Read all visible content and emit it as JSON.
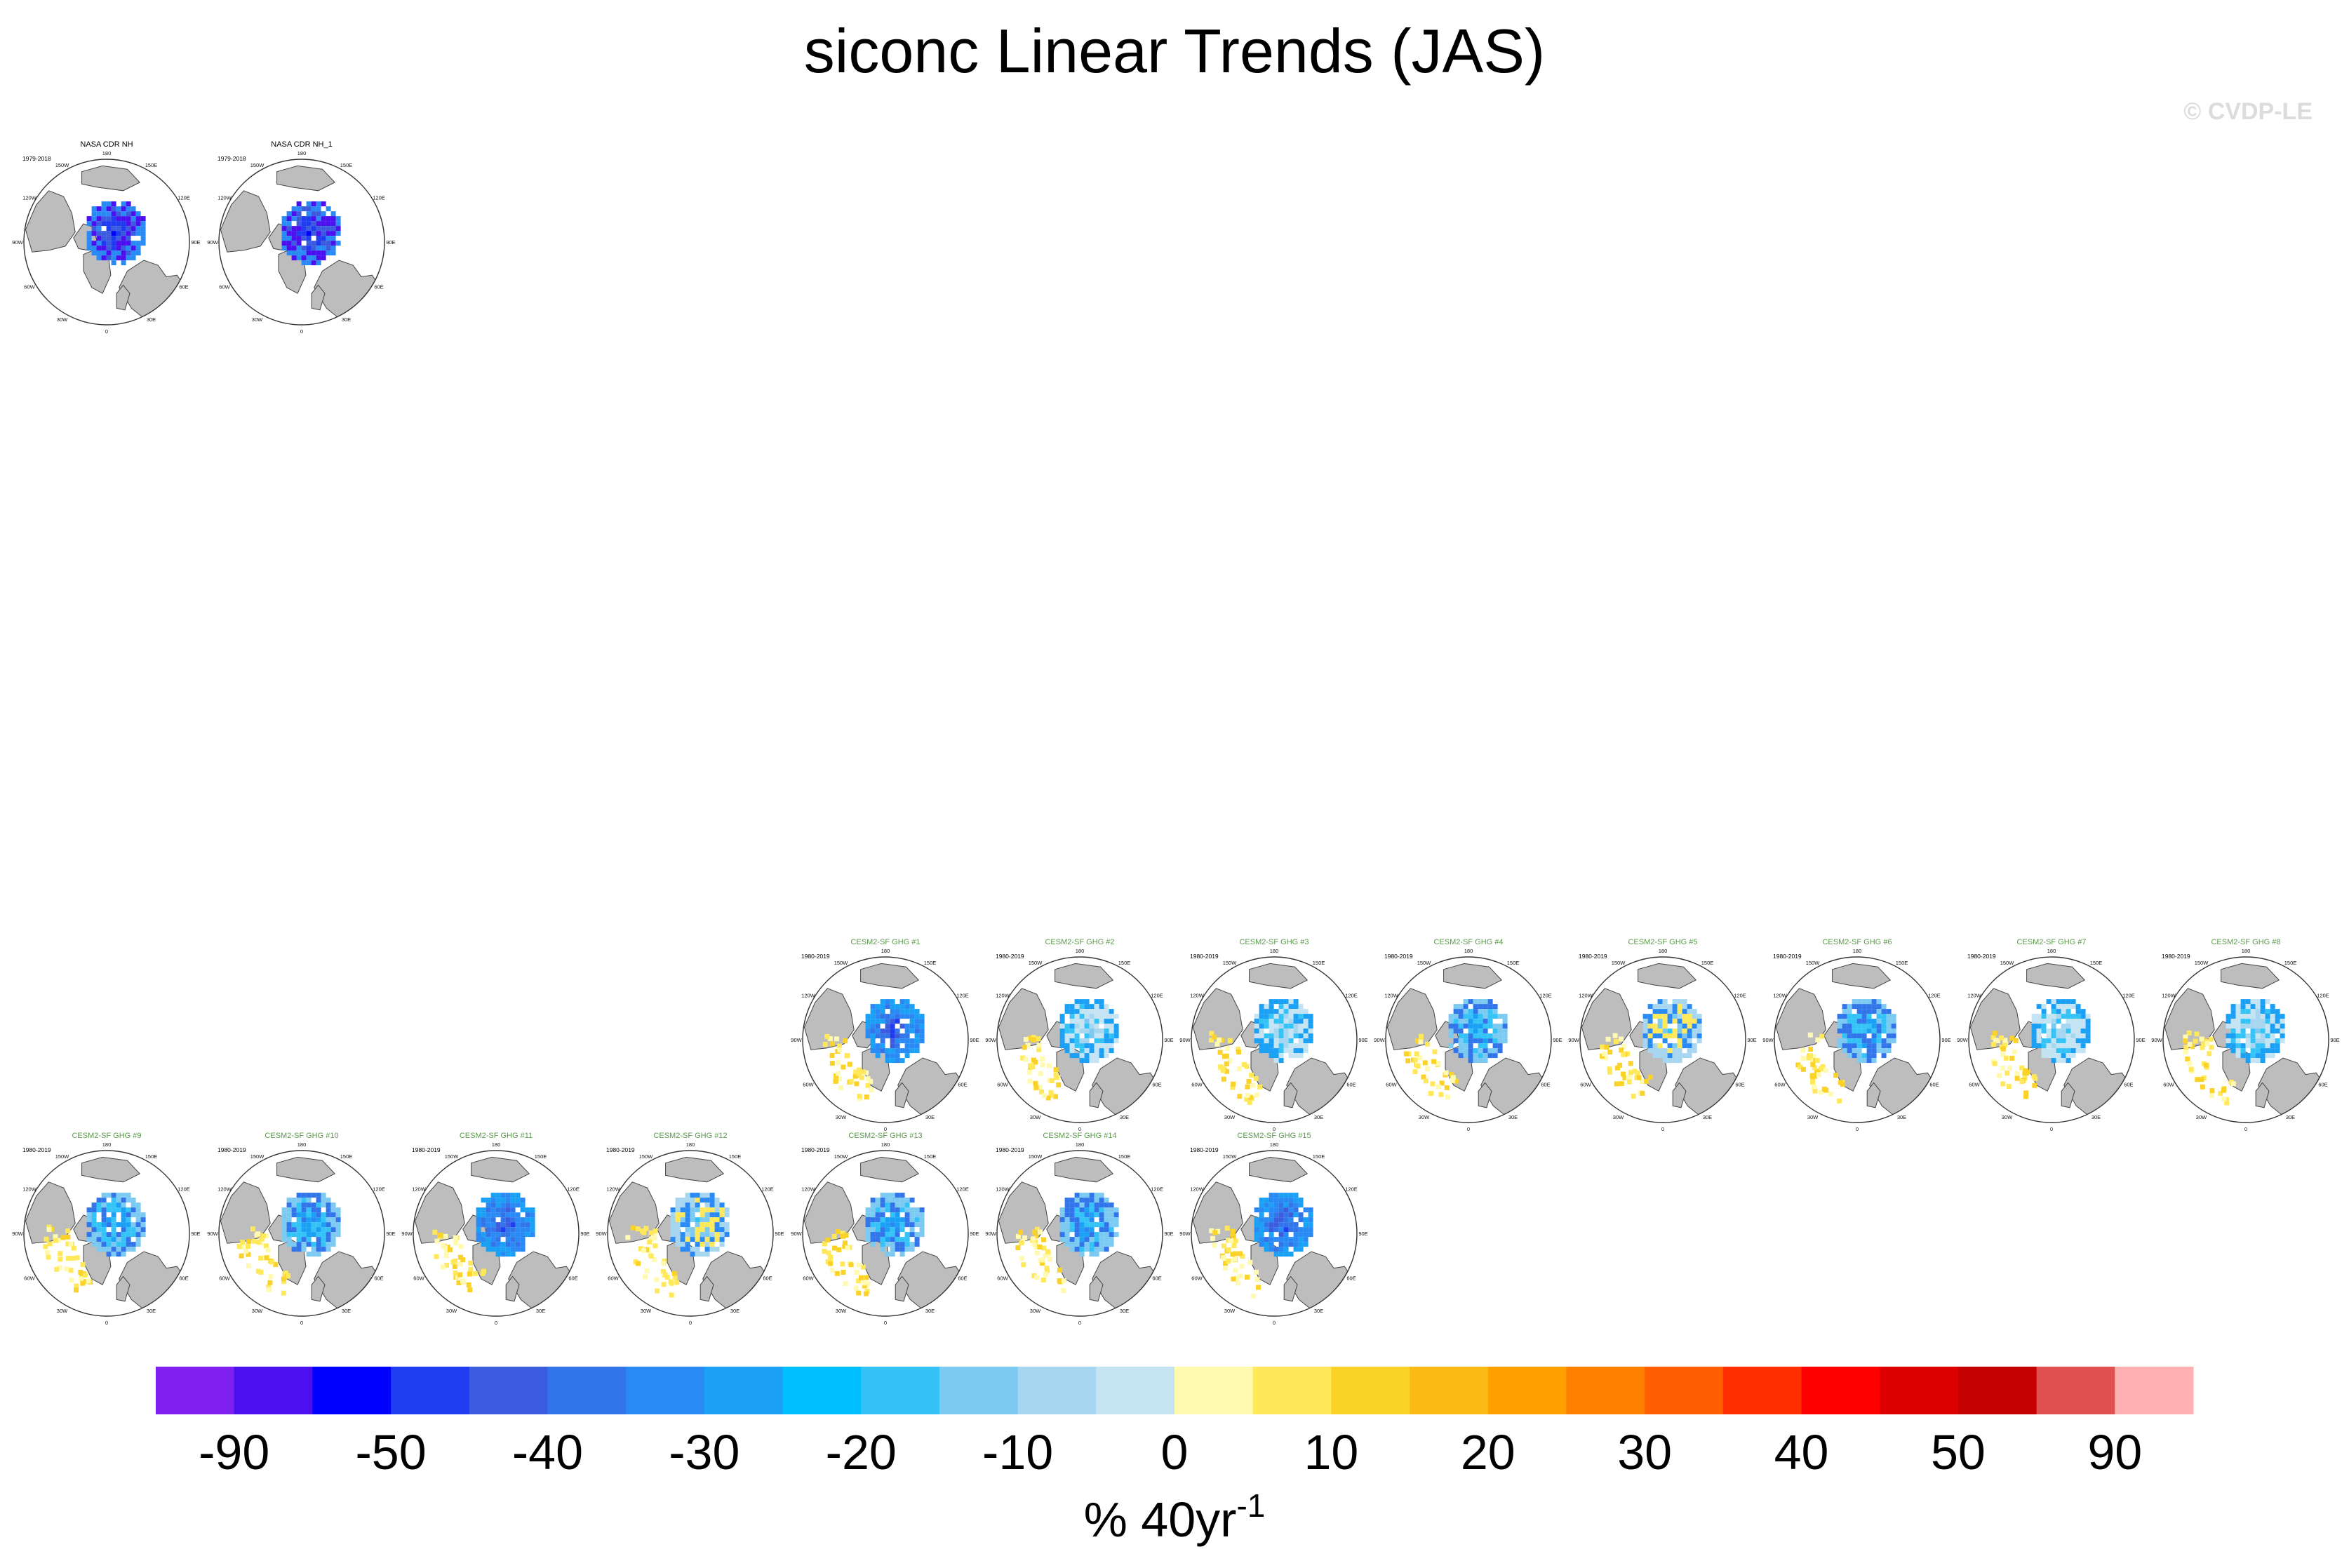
{
  "title": "siconc Linear Trends (JAS)",
  "watermark": "© CVDP-LE",
  "chart_data": {
    "type": "heatmap",
    "projection": "north polar stereographic",
    "panels": [
      {
        "title": "NASA CDR NH",
        "period": "1979-2018",
        "title_color": "#000000",
        "pattern": "obs"
      },
      {
        "title": "NASA CDR NH_1",
        "period": "1979-2018",
        "title_color": "#000000",
        "pattern": "obs"
      },
      {
        "title": "CESM2-SF GHG #1",
        "period": "1980-2019",
        "title_color": "#5a9a4a",
        "pattern": "strong"
      },
      {
        "title": "CESM2-SF GHG #2",
        "period": "1980-2019",
        "title_color": "#5a9a4a",
        "pattern": "weak"
      },
      {
        "title": "CESM2-SF GHG #3",
        "period": "1980-2019",
        "title_color": "#5a9a4a",
        "pattern": "weak"
      },
      {
        "title": "CESM2-SF GHG #4",
        "period": "1980-2019",
        "title_color": "#5a9a4a",
        "pattern": "medium"
      },
      {
        "title": "CESM2-SF GHG #5",
        "period": "1980-2019",
        "title_color": "#5a9a4a",
        "pattern": "mixed"
      },
      {
        "title": "CESM2-SF GHG #6",
        "period": "1980-2019",
        "title_color": "#5a9a4a",
        "pattern": "medium"
      },
      {
        "title": "CESM2-SF GHG #7",
        "period": "1980-2019",
        "title_color": "#5a9a4a",
        "pattern": "weak"
      },
      {
        "title": "CESM2-SF GHG #8",
        "period": "1980-2019",
        "title_color": "#5a9a4a",
        "pattern": "weak"
      },
      {
        "title": "CESM2-SF GHG #9",
        "period": "1980-2019",
        "title_color": "#5a9a4a",
        "pattern": "medium"
      },
      {
        "title": "CESM2-SF GHG #10",
        "period": "1980-2019",
        "title_color": "#5a9a4a",
        "pattern": "medium"
      },
      {
        "title": "CESM2-SF GHG #11",
        "period": "1980-2019",
        "title_color": "#5a9a4a",
        "pattern": "strong"
      },
      {
        "title": "CESM2-SF GHG #12",
        "period": "1980-2019",
        "title_color": "#5a9a4a",
        "pattern": "mixed"
      },
      {
        "title": "CESM2-SF GHG #13",
        "period": "1980-2019",
        "title_color": "#5a9a4a",
        "pattern": "medium"
      },
      {
        "title": "CESM2-SF GHG #14",
        "period": "1980-2019",
        "title_color": "#5a9a4a",
        "pattern": "medium"
      },
      {
        "title": "CESM2-SF GHG #15",
        "period": "1980-2019",
        "title_color": "#5a9a4a",
        "pattern": "strong"
      }
    ],
    "longitude_labels": [
      "180",
      "150E",
      "120E",
      "90E",
      "60E",
      "30E",
      "0",
      "30W",
      "60W",
      "90W",
      "120W",
      "150W"
    ],
    "colorbar": {
      "colors": [
        "#7f1ff0",
        "#4b0ff0",
        "#0000ff",
        "#1f3cf0",
        "#3c5ce0",
        "#3275ea",
        "#2a8af5",
        "#1aa0f5",
        "#00bfff",
        "#33c3f7",
        "#7ccaf2",
        "#a6d6f0",
        "#c4e4f4",
        "#fffaaf",
        "#ffe95a",
        "#fbd228",
        "#fbbb14",
        "#ff9f00",
        "#ff7f00",
        "#ff5f00",
        "#ff2f00",
        "#ff0000",
        "#dd0000",
        "#c40000",
        "#e05050",
        "#ffb0b0"
      ],
      "tick_labels": [
        "-90",
        "-50",
        "-40",
        "-30",
        "-20",
        "-10",
        "0",
        "10",
        "20",
        "30",
        "40",
        "50",
        "90"
      ],
      "label": "% 40yr",
      "label_superscript": "-1"
    }
  }
}
